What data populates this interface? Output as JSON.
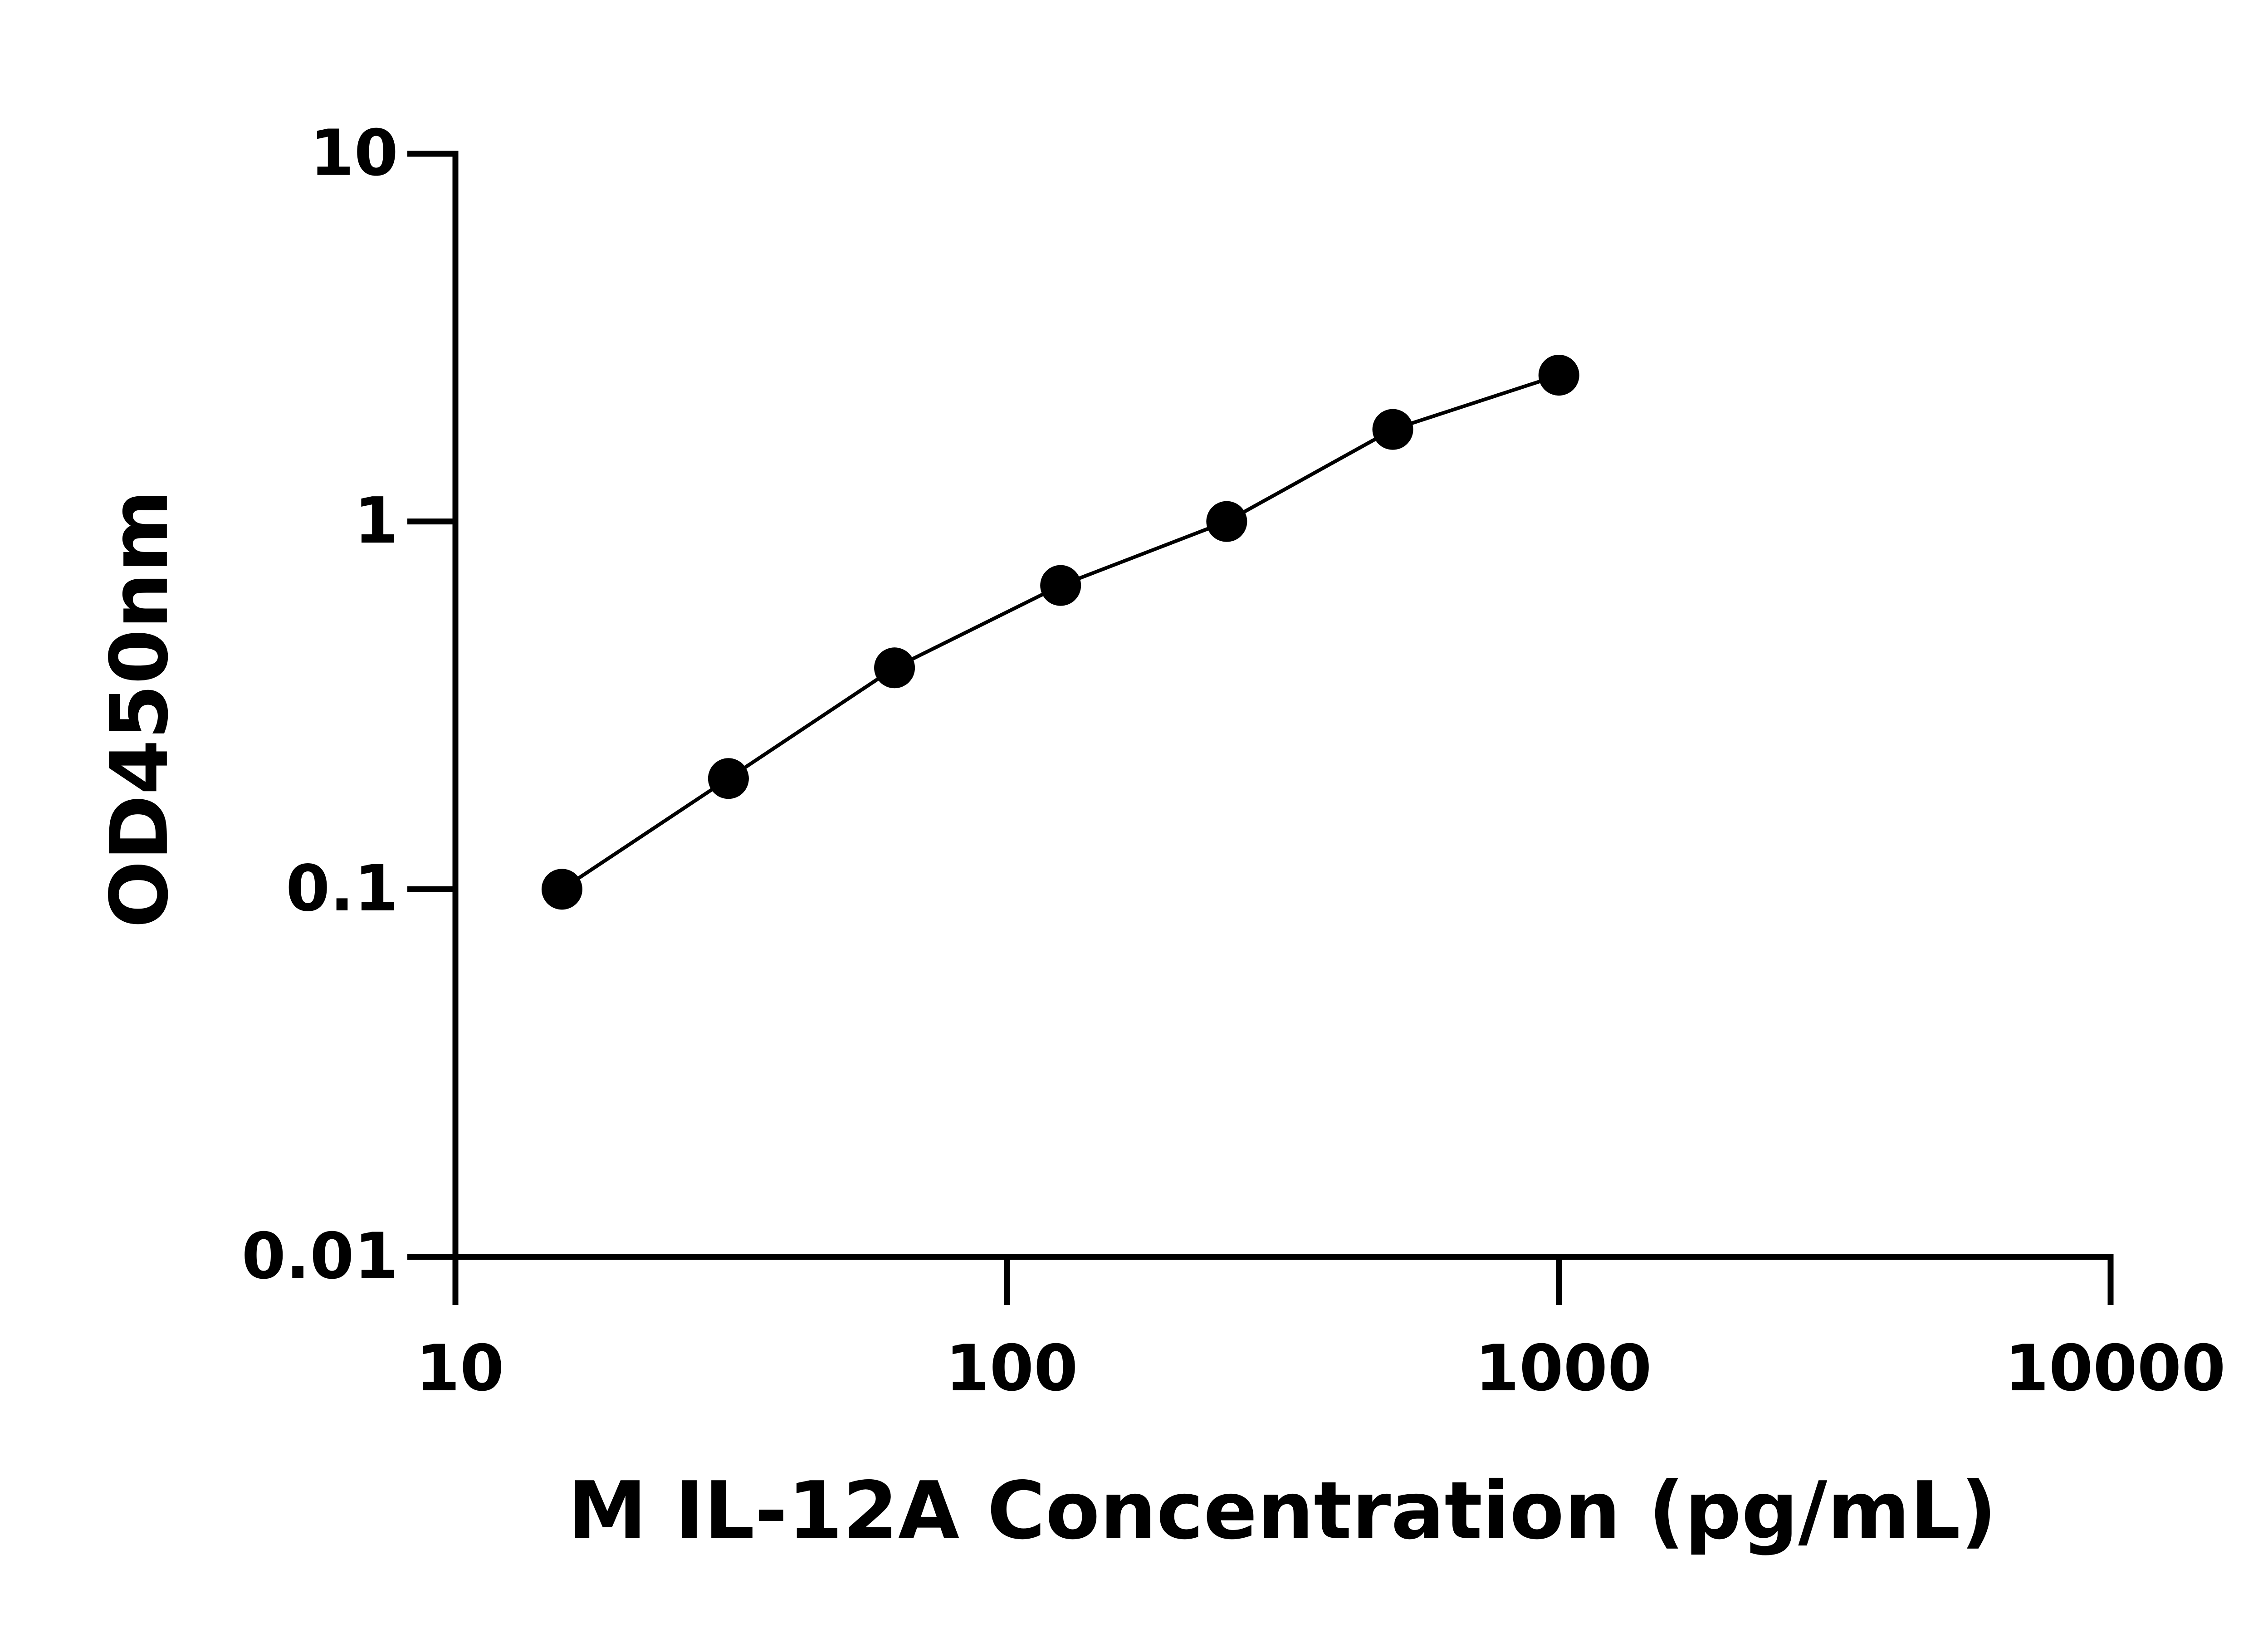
{
  "chart_data": {
    "type": "scatter",
    "xlabel": "M IL-12A Concentration (pg/mL)",
    "ylabel": "OD450nm",
    "x": [
      15.6,
      31.25,
      62.5,
      125,
      250,
      500,
      1000
    ],
    "series": [
      {
        "color": "#000000",
        "values": [
          0.1,
          0.2,
          0.4,
          0.67,
          1.0,
          1.78,
          2.5
        ]
      }
    ],
    "xscale": "log",
    "yscale": "log",
    "xlim": [
      10,
      10000
    ],
    "ylim": [
      0.01,
      10
    ],
    "xticks": [
      10,
      100,
      1000,
      10000
    ],
    "yticks": [
      0.01,
      0.1,
      1,
      10
    ],
    "grid": false
  }
}
